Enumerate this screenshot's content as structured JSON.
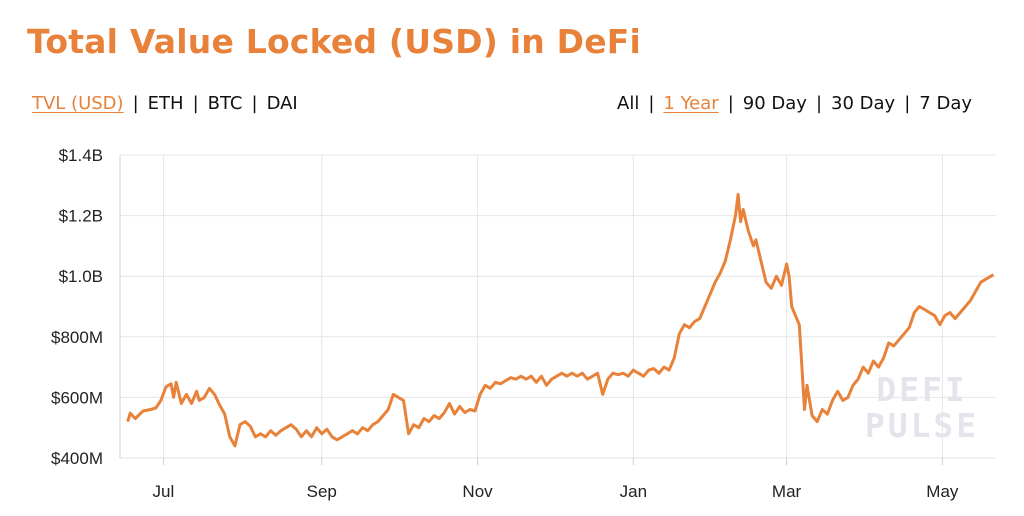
{
  "title": "Total Value Locked (USD) in DeFi",
  "units": {
    "options": [
      "TVL (USD)",
      "ETH",
      "BTC",
      "DAI"
    ],
    "selected": "TVL (USD)"
  },
  "ranges": {
    "options": [
      "All",
      "1 Year",
      "90 Day",
      "30 Day",
      "7 Day"
    ],
    "selected": "1 Year"
  },
  "separator": "|",
  "watermark": [
    "DEFI",
    "PULSE"
  ],
  "colors": {
    "accent": "#E8823A",
    "line": "#E8823A",
    "grid": "#e6e6e6",
    "text": "#111111"
  },
  "chart_data": {
    "type": "line",
    "title": "Total Value Locked (USD) in DeFi",
    "xlabel": "",
    "ylabel": "",
    "x_ticks": [
      "Jul",
      "Sep",
      "Nov",
      "Jan",
      "Mar",
      "May"
    ],
    "y_ticks": [
      "$400M",
      "$600M",
      "$800M",
      "$1.0B",
      "$1.2B",
      "$1.4B"
    ],
    "y_tick_values": [
      400,
      600,
      800,
      1000,
      1200,
      1400
    ],
    "ylim": [
      400,
      1400
    ],
    "y_unit": "millions USD",
    "grid": true,
    "legend": "none",
    "series": [
      {
        "color": "#E8823A",
        "points": [
          [
            "06-17",
            520
          ],
          [
            "06-18",
            548
          ],
          [
            "06-20",
            530
          ],
          [
            "06-23",
            555
          ],
          [
            "06-26",
            560
          ],
          [
            "06-28",
            565
          ],
          [
            "06-30",
            590
          ],
          [
            "07-02",
            635
          ],
          [
            "07-04",
            645
          ],
          [
            "07-05",
            600
          ],
          [
            "07-06",
            650
          ],
          [
            "07-08",
            580
          ],
          [
            "07-10",
            610
          ],
          [
            "07-12",
            580
          ],
          [
            "07-14",
            620
          ],
          [
            "07-15",
            590
          ],
          [
            "07-17",
            600
          ],
          [
            "07-19",
            630
          ],
          [
            "07-21",
            610
          ],
          [
            "07-23",
            575
          ],
          [
            "07-25",
            545
          ],
          [
            "07-27",
            470
          ],
          [
            "07-29",
            440
          ],
          [
            "07-31",
            510
          ],
          [
            "08-02",
            520
          ],
          [
            "08-04",
            505
          ],
          [
            "08-06",
            470
          ],
          [
            "08-08",
            480
          ],
          [
            "08-10",
            470
          ],
          [
            "08-12",
            490
          ],
          [
            "08-14",
            475
          ],
          [
            "08-16",
            490
          ],
          [
            "08-18",
            500
          ],
          [
            "08-20",
            510
          ],
          [
            "08-22",
            495
          ],
          [
            "08-24",
            470
          ],
          [
            "08-26",
            490
          ],
          [
            "08-28",
            470
          ],
          [
            "08-30",
            500
          ],
          [
            "09-01",
            480
          ],
          [
            "09-03",
            495
          ],
          [
            "09-05",
            470
          ],
          [
            "09-07",
            460
          ],
          [
            "09-09",
            470
          ],
          [
            "09-11",
            480
          ],
          [
            "09-13",
            490
          ],
          [
            "09-15",
            480
          ],
          [
            "09-17",
            500
          ],
          [
            "09-19",
            490
          ],
          [
            "09-21",
            510
          ],
          [
            "09-23",
            520
          ],
          [
            "09-25",
            540
          ],
          [
            "09-27",
            560
          ],
          [
            "09-29",
            610
          ],
          [
            "10-01",
            600
          ],
          [
            "10-03",
            590
          ],
          [
            "10-05",
            480
          ],
          [
            "10-07",
            510
          ],
          [
            "10-09",
            500
          ],
          [
            "10-11",
            530
          ],
          [
            "10-13",
            520
          ],
          [
            "10-15",
            540
          ],
          [
            "10-17",
            530
          ],
          [
            "10-19",
            550
          ],
          [
            "10-21",
            580
          ],
          [
            "10-23",
            545
          ],
          [
            "10-25",
            570
          ],
          [
            "10-27",
            550
          ],
          [
            "10-29",
            560
          ],
          [
            "10-31",
            555
          ],
          [
            "11-02",
            610
          ],
          [
            "11-04",
            640
          ],
          [
            "11-06",
            630
          ],
          [
            "11-08",
            650
          ],
          [
            "11-10",
            645
          ],
          [
            "11-12",
            655
          ],
          [
            "11-14",
            665
          ],
          [
            "11-16",
            660
          ],
          [
            "11-18",
            670
          ],
          [
            "11-20",
            660
          ],
          [
            "11-22",
            670
          ],
          [
            "11-24",
            650
          ],
          [
            "11-26",
            670
          ],
          [
            "11-28",
            640
          ],
          [
            "11-30",
            660
          ],
          [
            "12-02",
            670
          ],
          [
            "12-04",
            680
          ],
          [
            "12-06",
            670
          ],
          [
            "12-08",
            680
          ],
          [
            "12-10",
            670
          ],
          [
            "12-12",
            680
          ],
          [
            "12-14",
            660
          ],
          [
            "12-16",
            670
          ],
          [
            "12-18",
            680
          ],
          [
            "12-20",
            610
          ],
          [
            "12-22",
            660
          ],
          [
            "12-24",
            680
          ],
          [
            "12-26",
            675
          ],
          [
            "12-28",
            680
          ],
          [
            "12-30",
            670
          ],
          [
            "01-01",
            690
          ],
          [
            "01-03",
            680
          ],
          [
            "01-05",
            670
          ],
          [
            "01-07",
            690
          ],
          [
            "01-09",
            695
          ],
          [
            "01-11",
            680
          ],
          [
            "01-13",
            700
          ],
          [
            "01-15",
            690
          ],
          [
            "01-17",
            730
          ],
          [
            "01-19",
            810
          ],
          [
            "01-21",
            840
          ],
          [
            "01-23",
            830
          ],
          [
            "01-25",
            850
          ],
          [
            "01-27",
            860
          ],
          [
            "01-29",
            900
          ],
          [
            "01-31",
            940
          ],
          [
            "02-02",
            980
          ],
          [
            "02-04",
            1010
          ],
          [
            "02-06",
            1050
          ],
          [
            "02-08",
            1120
          ],
          [
            "02-10",
            1200
          ],
          [
            "02-11",
            1270
          ],
          [
            "02-12",
            1180
          ],
          [
            "02-13",
            1220
          ],
          [
            "02-15",
            1150
          ],
          [
            "02-17",
            1100
          ],
          [
            "02-18",
            1120
          ],
          [
            "02-20",
            1050
          ],
          [
            "02-22",
            980
          ],
          [
            "02-24",
            960
          ],
          [
            "02-26",
            1000
          ],
          [
            "02-28",
            970
          ],
          [
            "03-01",
            1040
          ],
          [
            "03-02",
            1000
          ],
          [
            "03-03",
            900
          ],
          [
            "03-04",
            880
          ],
          [
            "03-06",
            840
          ],
          [
            "03-08",
            560
          ],
          [
            "03-09",
            640
          ],
          [
            "03-11",
            540
          ],
          [
            "03-13",
            520
          ],
          [
            "03-15",
            560
          ],
          [
            "03-17",
            545
          ],
          [
            "03-19",
            590
          ],
          [
            "03-21",
            620
          ],
          [
            "03-23",
            590
          ],
          [
            "03-25",
            600
          ],
          [
            "03-27",
            640
          ],
          [
            "03-29",
            660
          ],
          [
            "03-31",
            700
          ],
          [
            "04-02",
            680
          ],
          [
            "04-04",
            720
          ],
          [
            "04-06",
            700
          ],
          [
            "04-08",
            730
          ],
          [
            "04-10",
            780
          ],
          [
            "04-12",
            770
          ],
          [
            "04-14",
            790
          ],
          [
            "04-16",
            810
          ],
          [
            "04-18",
            830
          ],
          [
            "04-20",
            880
          ],
          [
            "04-22",
            900
          ],
          [
            "04-24",
            890
          ],
          [
            "04-26",
            880
          ],
          [
            "04-28",
            870
          ],
          [
            "04-30",
            840
          ],
          [
            "05-02",
            870
          ],
          [
            "05-04",
            880
          ],
          [
            "05-06",
            860
          ],
          [
            "05-08",
            880
          ],
          [
            "05-10",
            900
          ],
          [
            "05-12",
            920
          ],
          [
            "05-14",
            950
          ],
          [
            "05-16",
            980
          ],
          [
            "05-18",
            990
          ],
          [
            "05-20",
            1000
          ],
          [
            "05-21",
            1005
          ]
        ]
      }
    ]
  }
}
